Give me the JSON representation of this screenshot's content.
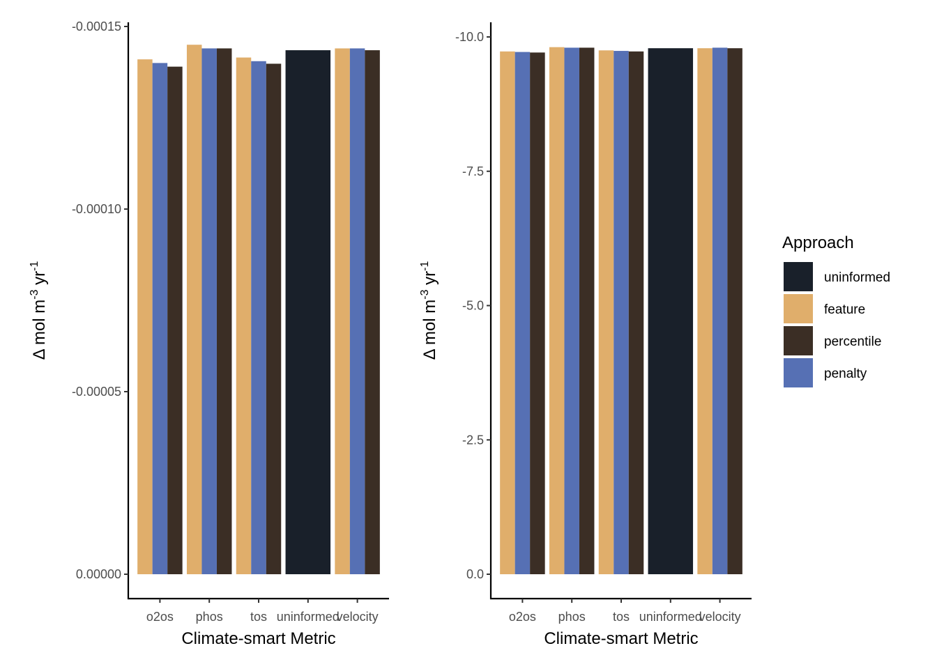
{
  "chart_data": [
    {
      "type": "bar",
      "categories": [
        "o2os",
        "phos",
        "tos",
        "uninformed",
        "velocity"
      ],
      "series": [
        {
          "name": "feature",
          "values": [
            -0.000141,
            -0.000145,
            -0.0001415,
            null,
            -0.000144
          ]
        },
        {
          "name": "penalty",
          "values": [
            -0.00014,
            -0.000144,
            -0.0001405,
            null,
            -0.000144
          ]
        },
        {
          "name": "percentile",
          "values": [
            -0.000139,
            -0.000144,
            -0.0001398,
            null,
            -0.0001435
          ]
        },
        {
          "name": "uninformed",
          "values": [
            null,
            null,
            null,
            -0.0001435,
            null
          ]
        }
      ],
      "xlabel": "Climate-smart Metric",
      "ylabel_main": "Δ mol m",
      "ylabel_sup1": "-3",
      "ylabel_mid": " yr",
      "ylabel_sup2": "-1",
      "ylim": [
        0,
        -0.00015
      ],
      "yticks": [
        0,
        -5e-05,
        -0.0001,
        -0.00015
      ],
      "ytick_labels": [
        "0.00000",
        "-0.00005",
        "-0.00010",
        "-0.00015"
      ]
    },
    {
      "type": "bar",
      "categories": [
        "o2os",
        "phos",
        "tos",
        "uninformed",
        "velocity"
      ],
      "series": [
        {
          "name": "feature",
          "values": [
            -9.73,
            -9.81,
            -9.75,
            null,
            -9.79
          ]
        },
        {
          "name": "penalty",
          "values": [
            -9.72,
            -9.8,
            -9.74,
            null,
            -9.8
          ]
        },
        {
          "name": "percentile",
          "values": [
            -9.71,
            -9.8,
            -9.73,
            null,
            -9.79
          ]
        },
        {
          "name": "uninformed",
          "values": [
            null,
            null,
            null,
            -9.79,
            null
          ]
        }
      ],
      "xlabel": "Climate-smart Metric",
      "ylabel_main": "Δ mol m",
      "ylabel_sup1": "-3",
      "ylabel_mid": " yr",
      "ylabel_sup2": "-1",
      "ylim": [
        0,
        -10.0
      ],
      "yticks": [
        0,
        -2.5,
        -5.0,
        -7.5,
        -10.0
      ],
      "ytick_labels": [
        "0.0",
        "-2.5",
        "-5.0",
        "-7.5",
        "-10.0"
      ]
    }
  ],
  "legend": {
    "title": "Approach",
    "items": [
      {
        "name": "uninformed",
        "color": "#19202a"
      },
      {
        "name": "feature",
        "color": "#e0ae6b"
      },
      {
        "name": "percentile",
        "color": "#3b2e25"
      },
      {
        "name": "penalty",
        "color": "#5670b4"
      }
    ]
  },
  "colors": {
    "uninformed": "#19202a",
    "feature": "#e0ae6b",
    "percentile": "#3b2e25",
    "penalty": "#5670b4"
  }
}
